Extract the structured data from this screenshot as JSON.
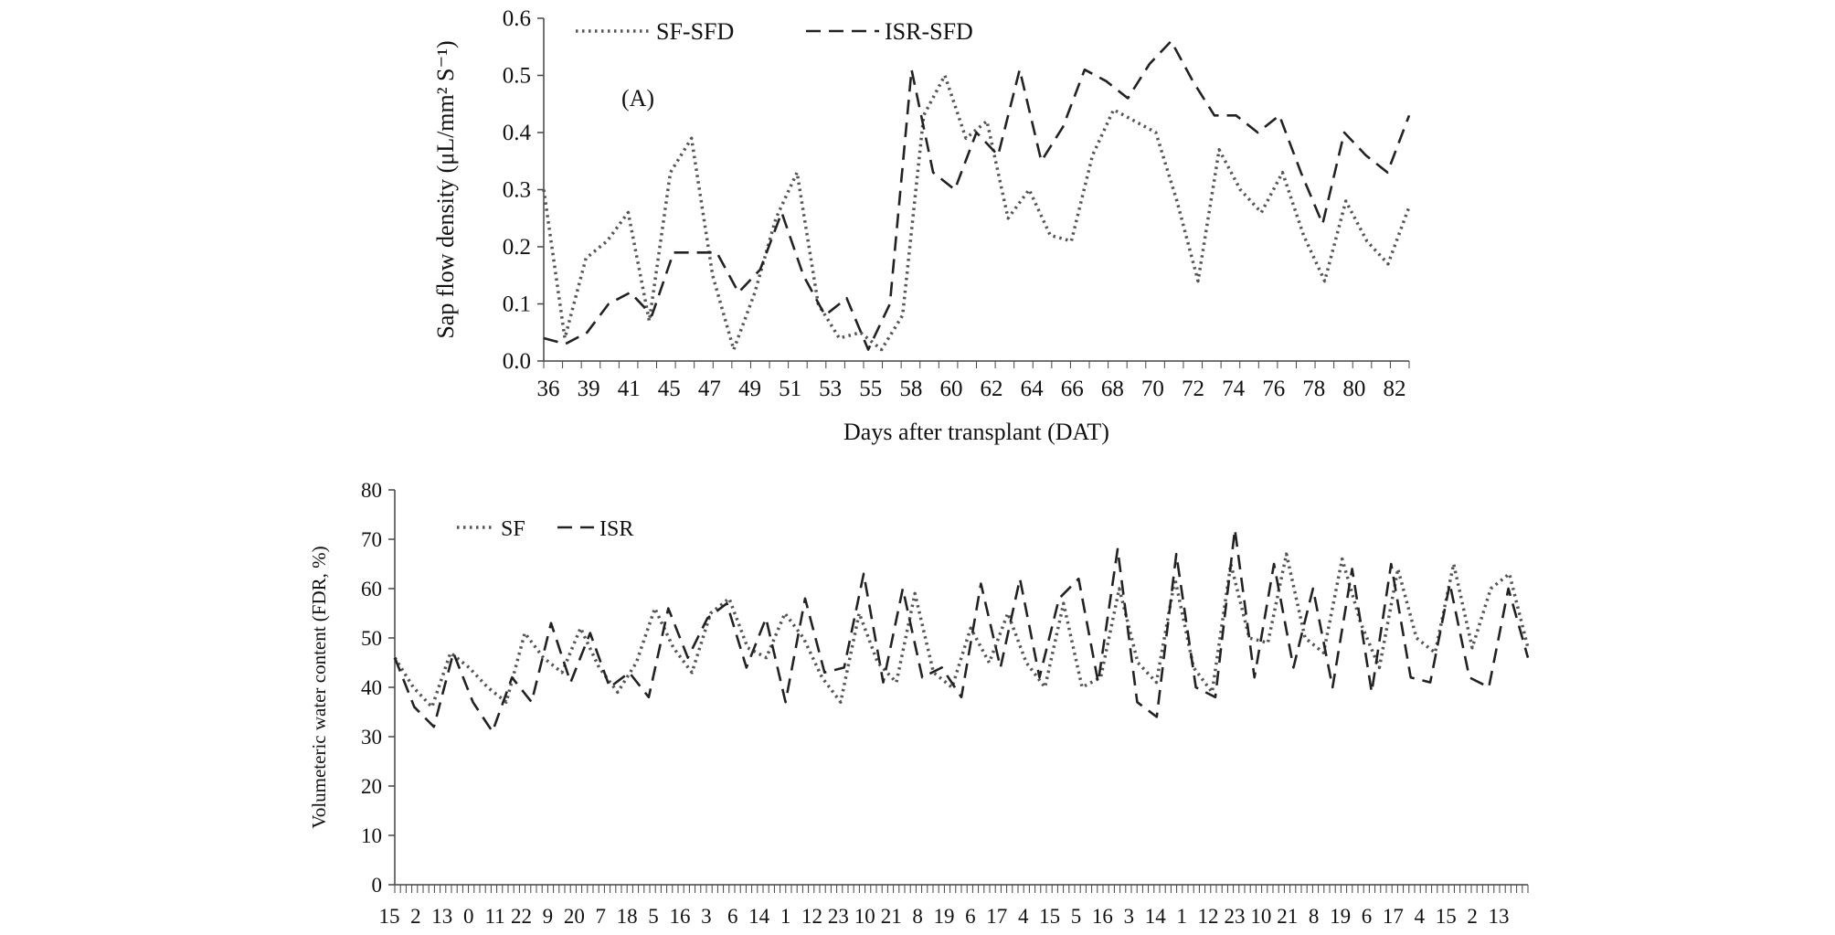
{
  "chart_data": [
    {
      "panel_label": "(A)",
      "type": "line",
      "xlabel": "Days after transplant (DAT)",
      "ylabel": "Sap flow density (μL/mm² S⁻¹)",
      "ylim": [
        0,
        0.6
      ],
      "yticks": [
        "0.0",
        "0.1",
        "0.2",
        "0.3",
        "0.4",
        "0.5",
        "0.6"
      ],
      "x_tick_labels": [
        "36",
        "39",
        "41",
        "45",
        "47",
        "49",
        "51",
        "53",
        "55",
        "58",
        "60",
        "62",
        "64",
        "66",
        "68",
        "70",
        "72",
        "74",
        "76",
        "78",
        "80",
        "82"
      ],
      "legend_position": "top",
      "series": [
        {
          "name": "SF-SFD",
          "style": "dotted",
          "color": "#555555",
          "values": [
            0.3,
            0.04,
            0.18,
            0.21,
            0.26,
            0.07,
            0.33,
            0.39,
            0.15,
            0.02,
            0.12,
            0.25,
            0.33,
            0.1,
            0.04,
            0.05,
            0.02,
            0.08,
            0.43,
            0.5,
            0.39,
            0.42,
            0.25,
            0.3,
            0.22,
            0.21,
            0.36,
            0.44,
            0.42,
            0.4,
            0.28,
            0.14,
            0.37,
            0.3,
            0.26,
            0.33,
            0.22,
            0.14,
            0.28,
            0.21,
            0.17,
            0.27
          ]
        },
        {
          "name": "ISR-SFD",
          "style": "dashed",
          "color": "#222222",
          "values": [
            0.04,
            0.03,
            0.05,
            0.1,
            0.12,
            0.08,
            0.19,
            0.19,
            0.19,
            0.12,
            0.16,
            0.26,
            0.15,
            0.08,
            0.11,
            0.02,
            0.1,
            0.51,
            0.33,
            0.3,
            0.4,
            0.36,
            0.51,
            0.35,
            0.41,
            0.51,
            0.49,
            0.46,
            0.52,
            0.56,
            0.49,
            0.43,
            0.43,
            0.4,
            0.43,
            0.33,
            0.24,
            0.4,
            0.36,
            0.33,
            0.43
          ]
        }
      ]
    },
    {
      "type": "line",
      "xlabel": "",
      "ylabel": "Volumeteric water content  (FDR, %)",
      "ylim": [
        0,
        80
      ],
      "yticks": [
        "0",
        "10",
        "20",
        "30",
        "40",
        "50",
        "60",
        "70",
        "80"
      ],
      "x_tick_labels": [
        "15",
        "2",
        "13",
        "0",
        "11",
        "22",
        "9",
        "20",
        "7",
        "18",
        "5",
        "16",
        "3",
        "6",
        "14",
        "1",
        "12",
        "23",
        "10",
        "21",
        "8",
        "19",
        "6",
        "17",
        "4",
        "15",
        "5",
        "16",
        "3",
        "14",
        "1",
        "12",
        "23",
        "10",
        "21",
        "8",
        "19",
        "6",
        "17",
        "4",
        "15",
        "2",
        "13"
      ],
      "legend_position": "top-left",
      "series": [
        {
          "name": "SF",
          "style": "dotted",
          "color": "#555555",
          "values": [
            46,
            40,
            36,
            47,
            44,
            40,
            37,
            51,
            46,
            43,
            52,
            44,
            39,
            45,
            56,
            48,
            43,
            55,
            58,
            48,
            46,
            55,
            50,
            42,
            37,
            55,
            45,
            41,
            59,
            43,
            40,
            52,
            45,
            55,
            45,
            40,
            57,
            40,
            42,
            60,
            45,
            41,
            62,
            44,
            39,
            65,
            50,
            49,
            67,
            50,
            47,
            66,
            53,
            44,
            64,
            50,
            47,
            65,
            48,
            60,
            63,
            48
          ]
        },
        {
          "name": "ISR",
          "style": "dashed",
          "color": "#222222",
          "values": [
            46,
            36,
            32,
            47,
            37,
            31,
            42,
            37,
            53,
            41,
            51,
            40,
            43,
            38,
            56,
            46,
            54,
            57,
            44,
            54,
            37,
            58,
            43,
            44,
            63,
            41,
            60,
            42,
            44,
            38,
            61,
            44,
            62,
            42,
            58,
            62,
            41,
            68,
            37,
            34,
            67,
            40,
            38,
            72,
            42,
            65,
            44,
            60,
            40,
            64,
            39,
            65,
            42,
            41,
            61,
            42,
            40,
            60,
            46
          ]
        }
      ]
    }
  ]
}
